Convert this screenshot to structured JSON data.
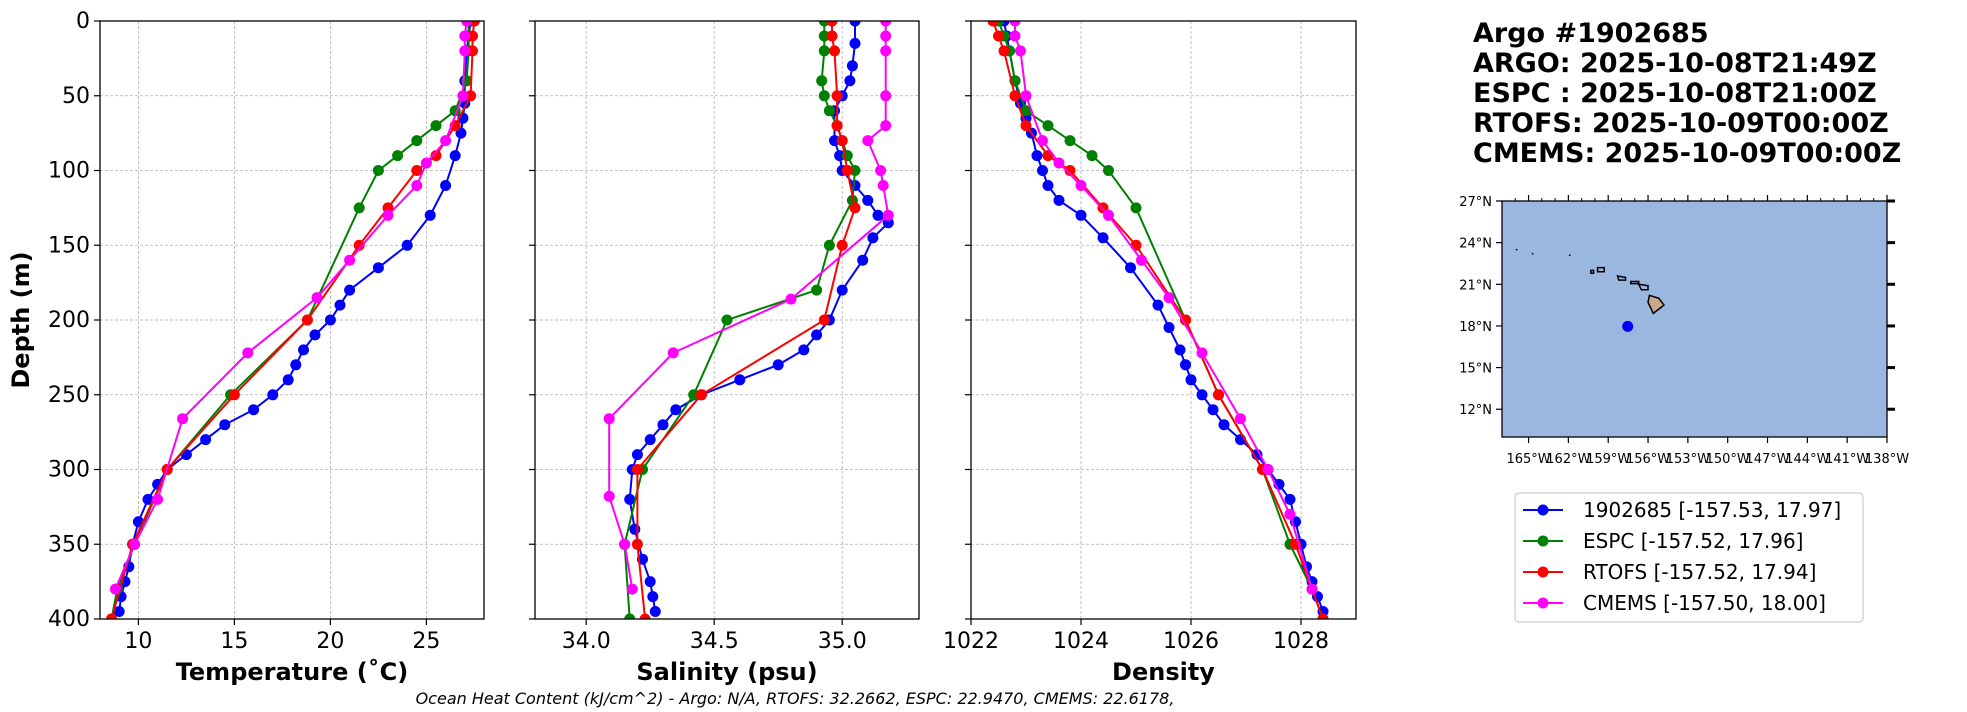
{
  "header": {
    "lines": [
      "Argo #1902685",
      "ARGO: 2025-10-08T21:49Z",
      "ESPC : 2025-10-08T21:00Z",
      "RTOFS: 2025-10-09T00:00Z",
      "CMEMS: 2025-10-09T00:00Z"
    ]
  },
  "footer": "Ocean Heat Content (kJ/cm^2) - Argo: N/A,  RTOFS: 32.2662,  ESPC: 22.9470,  CMEMS: 22.6178,",
  "colors": {
    "argo": "#0000ff",
    "espc": "#008000",
    "rtofs": "#ff0000",
    "cmems": "#ff00ff",
    "ocean": "#9ab7e0",
    "land": "#c8a888"
  },
  "legend": [
    {
      "label": "1902685 [-157.53, 17.97]",
      "color": "#0000ff"
    },
    {
      "label": "ESPC [-157.52, 17.96]",
      "color": "#008000"
    },
    {
      "label": "RTOFS [-157.52, 17.94]",
      "color": "#ff0000"
    },
    {
      "label": "CMEMS [-157.50, 18.00]",
      "color": "#ff00ff"
    }
  ],
  "chart_data": [
    {
      "type": "line",
      "id": "temperature",
      "xlabel": "Temperature (˚C)",
      "ylabel": "Depth (m)",
      "xlim": [
        8,
        28
      ],
      "ylim": [
        400,
        0
      ],
      "xticks": [
        10,
        15,
        20,
        25
      ],
      "yticks": [
        0,
        50,
        100,
        150,
        200,
        250,
        300,
        350,
        400
      ],
      "series": [
        {
          "name": "1902685",
          "key": "argo",
          "x": [
            27.3,
            27.2,
            27.1,
            27.0,
            27.0,
            26.9,
            26.8,
            26.5,
            26.0,
            25.2,
            24.0,
            22.5,
            21.0,
            20.5,
            20.0,
            19.2,
            18.6,
            18.2,
            17.8,
            17.0,
            16.0,
            14.5,
            13.5,
            12.5,
            11.5,
            11.0,
            10.5,
            10.0,
            9.7,
            9.5,
            9.3,
            9.1,
            9.0
          ],
          "y": [
            0,
            10,
            20,
            40,
            55,
            65,
            75,
            90,
            110,
            130,
            150,
            165,
            180,
            190,
            200,
            210,
            220,
            230,
            240,
            250,
            260,
            270,
            280,
            290,
            300,
            310,
            320,
            335,
            350,
            365,
            375,
            385,
            395
          ]
        },
        {
          "name": "ESPC",
          "key": "espc",
          "x": [
            27.2,
            27.2,
            27.2,
            27.1,
            26.5,
            25.5,
            24.5,
            23.5,
            22.5,
            21.5,
            18.8,
            14.8,
            11.5,
            9.8,
            8.9,
            8.6
          ],
          "y": [
            0,
            10,
            20,
            40,
            60,
            70,
            80,
            90,
            100,
            125,
            200,
            250,
            300,
            350,
            380,
            400
          ]
        },
        {
          "name": "RTOFS",
          "key": "rtofs",
          "x": [
            27.5,
            27.4,
            27.4,
            27.3,
            26.5,
            25.5,
            24.5,
            23.0,
            21.5,
            18.8,
            15.0,
            11.5,
            9.7,
            8.6
          ],
          "y": [
            0,
            10,
            20,
            50,
            70,
            90,
            100,
            125,
            150,
            200,
            250,
            300,
            350,
            400
          ]
        },
        {
          "name": "CMEMS",
          "key": "cmems",
          "x": [
            27.1,
            27.0,
            27.0,
            26.9,
            26.0,
            25.0,
            24.5,
            23.0,
            21.0,
            19.3,
            15.7,
            12.3,
            11.0,
            9.8,
            8.8
          ],
          "y": [
            0,
            10,
            20,
            50,
            80,
            95,
            110,
            130,
            160,
            185,
            222,
            266,
            320,
            350,
            380
          ]
        }
      ]
    },
    {
      "type": "line",
      "id": "salinity",
      "xlabel": "Salinity (psu)",
      "ylabel": "",
      "xlim": [
        33.8,
        35.3
      ],
      "ylim": [
        400,
        0
      ],
      "xticks": [
        34.0,
        34.5,
        35.0
      ],
      "yticks": [
        0,
        50,
        100,
        150,
        200,
        250,
        300,
        350,
        400
      ],
      "series": [
        {
          "name": "1902685",
          "key": "argo",
          "x": [
            35.05,
            35.05,
            35.04,
            35.03,
            35.0,
            34.97,
            34.97,
            34.99,
            35.0,
            35.05,
            35.1,
            35.14,
            35.18,
            35.12,
            35.08,
            35.0,
            34.95,
            34.9,
            34.85,
            34.75,
            34.6,
            34.45,
            34.35,
            34.3,
            34.25,
            34.2,
            34.18,
            34.17,
            34.19,
            34.22,
            34.25,
            34.26,
            34.27
          ],
          "y": [
            0,
            15,
            30,
            40,
            50,
            60,
            80,
            90,
            100,
            110,
            120,
            130,
            135,
            145,
            160,
            180,
            200,
            210,
            220,
            230,
            240,
            250,
            260,
            270,
            280,
            290,
            300,
            320,
            340,
            360,
            375,
            385,
            395
          ]
        },
        {
          "name": "ESPC",
          "key": "espc",
          "x": [
            34.93,
            34.93,
            34.93,
            34.92,
            34.93,
            34.95,
            34.98,
            35.0,
            35.02,
            35.05,
            35.04,
            34.95,
            34.9,
            34.55,
            34.42,
            34.22,
            34.15,
            34.17
          ],
          "y": [
            0,
            10,
            20,
            40,
            50,
            60,
            70,
            80,
            90,
            100,
            120,
            150,
            180,
            200,
            250,
            300,
            350,
            400
          ]
        },
        {
          "name": "RTOFS",
          "key": "rtofs",
          "x": [
            34.96,
            34.96,
            34.97,
            34.98,
            34.98,
            35.0,
            35.02,
            35.05,
            35.0,
            34.93,
            34.45,
            34.2,
            34.2,
            34.23
          ],
          "y": [
            0,
            10,
            20,
            50,
            70,
            80,
            100,
            125,
            150,
            200,
            250,
            300,
            350,
            400
          ]
        },
        {
          "name": "CMEMS",
          "key": "cmems",
          "x": [
            35.17,
            35.17,
            35.17,
            35.17,
            35.17,
            35.1,
            35.15,
            35.16,
            35.18,
            34.8,
            34.34,
            34.09,
            34.09,
            34.15,
            34.18
          ],
          "y": [
            0,
            10,
            20,
            50,
            70,
            80,
            100,
            110,
            130,
            186,
            222,
            266,
            318,
            350,
            380
          ]
        }
      ]
    },
    {
      "type": "line",
      "id": "density",
      "xlabel": "Density",
      "ylabel": "",
      "xlim": [
        1022,
        1029
      ],
      "ylim": [
        400,
        0
      ],
      "xticks": [
        1022,
        1024,
        1026,
        1028
      ],
      "yticks": [
        0,
        50,
        100,
        150,
        200,
        250,
        300,
        350,
        400
      ],
      "series": [
        {
          "name": "1902685",
          "key": "argo",
          "x": [
            1022.6,
            1022.65,
            1022.7,
            1022.8,
            1022.9,
            1023.0,
            1023.1,
            1023.2,
            1023.3,
            1023.4,
            1023.6,
            1024.0,
            1024.4,
            1024.9,
            1025.4,
            1025.6,
            1025.8,
            1025.9,
            1026.0,
            1026.2,
            1026.4,
            1026.6,
            1026.9,
            1027.2,
            1027.4,
            1027.6,
            1027.8,
            1027.9,
            1028.0,
            1028.1,
            1028.2,
            1028.3,
            1028.4
          ],
          "y": [
            0,
            10,
            20,
            40,
            55,
            65,
            75,
            90,
            100,
            110,
            120,
            130,
            145,
            165,
            190,
            205,
            220,
            230,
            240,
            250,
            260,
            270,
            280,
            290,
            300,
            310,
            320,
            335,
            350,
            365,
            375,
            385,
            395
          ]
        },
        {
          "name": "ESPC",
          "key": "espc",
          "x": [
            1022.5,
            1022.6,
            1022.7,
            1022.8,
            1023.0,
            1023.4,
            1023.8,
            1024.2,
            1024.5,
            1025.0,
            1025.9,
            1026.5,
            1027.3,
            1027.8,
            1028.2,
            1028.4
          ],
          "y": [
            0,
            10,
            20,
            40,
            60,
            70,
            80,
            90,
            100,
            125,
            200,
            250,
            300,
            350,
            380,
            400
          ]
        },
        {
          "name": "RTOFS",
          "key": "rtofs",
          "x": [
            1022.4,
            1022.5,
            1022.6,
            1022.8,
            1023.0,
            1023.4,
            1023.8,
            1024.4,
            1025.0,
            1025.9,
            1026.5,
            1027.3,
            1027.9,
            1028.4
          ],
          "y": [
            0,
            10,
            20,
            50,
            70,
            90,
            100,
            125,
            150,
            200,
            250,
            300,
            350,
            400
          ]
        },
        {
          "name": "CMEMS",
          "key": "cmems",
          "x": [
            1022.8,
            1022.8,
            1022.9,
            1023.0,
            1023.3,
            1023.6,
            1024.0,
            1024.5,
            1025.1,
            1025.6,
            1026.2,
            1026.9,
            1027.4,
            1027.8,
            1028.2
          ],
          "y": [
            0,
            10,
            20,
            50,
            80,
            95,
            110,
            130,
            160,
            185,
            222,
            266,
            300,
            330,
            380
          ]
        }
      ]
    },
    {
      "type": "scatter",
      "id": "location-map",
      "xlim": [
        -167,
        -138
      ],
      "ylim": [
        10,
        27
      ],
      "xticks": [
        -165,
        -162,
        -159,
        -156,
        -153,
        -150,
        -147,
        -144,
        -141,
        -138
      ],
      "xtick_labels": [
        "165°W",
        "162°W",
        "159°W",
        "156°W",
        "153°W",
        "150°W",
        "147°W",
        "144°W",
        "141°W",
        "138°W"
      ],
      "yticks": [
        12,
        15,
        18,
        21,
        24,
        27
      ],
      "ytick_labels": [
        "12°N",
        "15°N",
        "18°N",
        "21°N",
        "24°N",
        "27°N"
      ],
      "float_position": {
        "lon": -157.53,
        "lat": 17.97
      }
    }
  ]
}
